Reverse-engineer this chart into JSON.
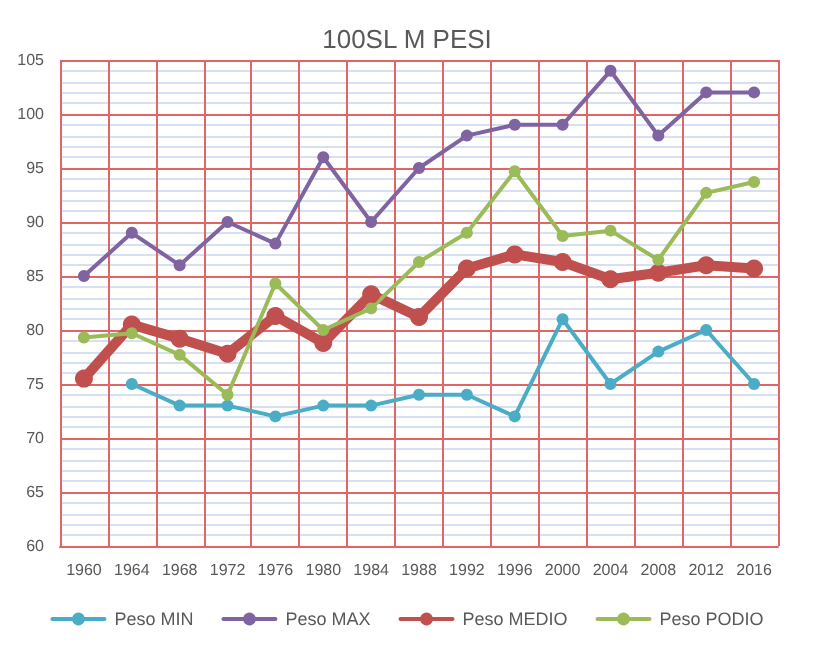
{
  "chart_data": {
    "type": "line",
    "title": "100SL M PESI",
    "categories": [
      "1960",
      "1964",
      "1968",
      "1972",
      "1976",
      "1980",
      "1984",
      "1988",
      "1992",
      "1996",
      "2000",
      "2004",
      "2008",
      "2012",
      "2016"
    ],
    "series": [
      {
        "name": "Peso MIN",
        "color": "#4bacc6",
        "values": [
          null,
          75,
          73,
          73,
          72,
          73,
          73,
          74,
          74,
          72,
          81,
          75,
          78,
          80,
          75
        ]
      },
      {
        "name": "Peso MAX",
        "color": "#8064a2",
        "values": [
          85,
          89,
          86,
          90,
          88,
          96,
          90,
          95,
          98,
          99,
          99,
          104,
          98,
          102,
          102
        ]
      },
      {
        "name": "Peso MEDIO",
        "color": "#c0504d",
        "values": [
          75.5,
          80.5,
          79.2,
          77.8,
          81.3,
          78.8,
          83.3,
          81.2,
          85.7,
          87,
          86.3,
          84.7,
          85.3,
          86,
          85.7
        ]
      },
      {
        "name": "Peso PODIO",
        "color": "#9bbb59",
        "values": [
          79.3,
          79.7,
          77.7,
          74,
          84.3,
          80,
          82,
          86.3,
          89,
          94.7,
          88.7,
          89.2,
          86.5,
          92.7,
          93.7
        ]
      }
    ],
    "ylim": [
      60,
      105
    ],
    "yticks": [
      60,
      65,
      70,
      75,
      80,
      85,
      90,
      95,
      100,
      105
    ],
    "grid": true,
    "legend": "bottom",
    "marker": "circle",
    "line_style": "solid"
  }
}
